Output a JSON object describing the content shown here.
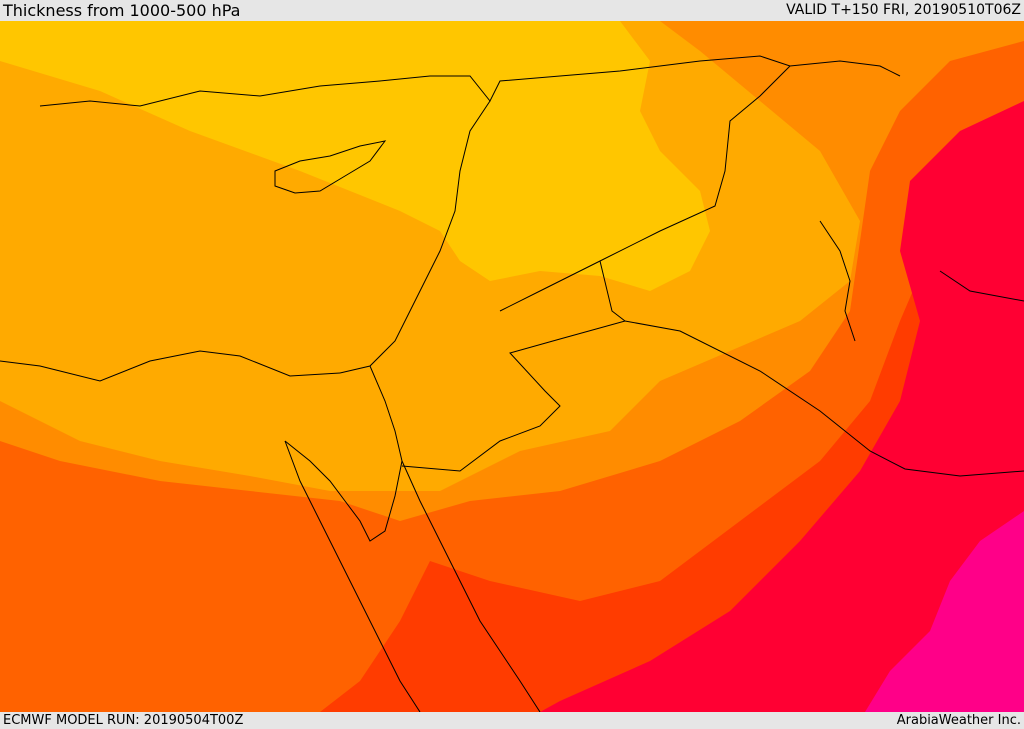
{
  "header": {
    "title": "Thickness from 1000-500 hPa",
    "valid": "VALID T+150 FRI, 20190510T06Z"
  },
  "footer": {
    "model_run": "ECMWF MODEL RUN: 20190504T00Z",
    "brand": "ArabiaWeather Inc."
  },
  "map": {
    "colors": {
      "band1": "#ffc600",
      "band2": "#ffaa00",
      "band3": "#ff8c00",
      "band4": "#ff6200",
      "band5": "#ff3c00",
      "band6": "#ff0033",
      "band7": "#ff0088",
      "border": "#000000"
    }
  }
}
